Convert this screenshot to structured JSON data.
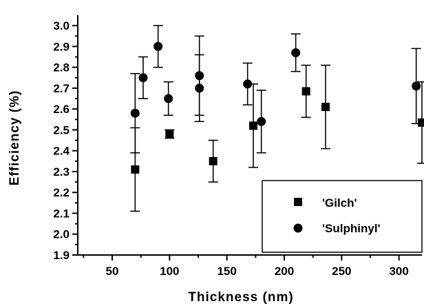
{
  "chart_data": {
    "type": "scatter",
    "title": "",
    "xlabel": "Thickness (nm)",
    "ylabel": "Efficiency (%)",
    "xlim": [
      20,
      320
    ],
    "ylim": [
      1.9,
      3.05
    ],
    "x_ticks": [
      50,
      100,
      150,
      200,
      250,
      300
    ],
    "y_ticks": [
      1.9,
      2.0,
      2.1,
      2.2,
      2.3,
      2.4,
      2.5,
      2.6,
      2.7,
      2.8,
      2.9,
      3.0
    ],
    "grid": false,
    "legend_position": "bottom-right",
    "series": [
      {
        "name": "'Gilch'",
        "marker": "square",
        "points": [
          {
            "x": 70,
            "y": 2.31,
            "err_low": 2.11,
            "err_high": 2.51
          },
          {
            "x": 100,
            "y": 2.48,
            "err_low": 2.46,
            "err_high": 2.5
          },
          {
            "x": 138,
            "y": 2.35,
            "err_low": 2.25,
            "err_high": 2.45
          },
          {
            "x": 173,
            "y": 2.52,
            "err_low": 2.32,
            "err_high": 2.72
          },
          {
            "x": 219,
            "y": 2.685,
            "err_low": 2.56,
            "err_high": 2.81
          },
          {
            "x": 236,
            "y": 2.61,
            "err_low": 2.41,
            "err_high": 2.81
          },
          {
            "x": 320,
            "y": 2.535,
            "err_low": 2.34,
            "err_high": 2.73
          }
        ]
      },
      {
        "name": "'Sulphinyl'",
        "marker": "circle",
        "points": [
          {
            "x": 70,
            "y": 2.58,
            "err_low": 2.39,
            "err_high": 2.77
          },
          {
            "x": 77,
            "y": 2.75,
            "err_low": 2.65,
            "err_high": 2.85
          },
          {
            "x": 90,
            "y": 2.9,
            "err_low": 2.8,
            "err_high": 3.0
          },
          {
            "x": 99,
            "y": 2.65,
            "err_low": 2.57,
            "err_high": 2.73
          },
          {
            "x": 126,
            "y": 2.76,
            "err_low": 2.57,
            "err_high": 2.95
          },
          {
            "x": 126,
            "y": 2.7,
            "err_low": 2.54,
            "err_high": 2.86
          },
          {
            "x": 168,
            "y": 2.72,
            "err_low": 2.62,
            "err_high": 2.82
          },
          {
            "x": 180,
            "y": 2.54,
            "err_low": 2.39,
            "err_high": 2.69
          },
          {
            "x": 210,
            "y": 2.87,
            "err_low": 2.78,
            "err_high": 2.96
          },
          {
            "x": 315,
            "y": 2.71,
            "err_low": 2.53,
            "err_high": 2.89
          }
        ]
      }
    ]
  }
}
